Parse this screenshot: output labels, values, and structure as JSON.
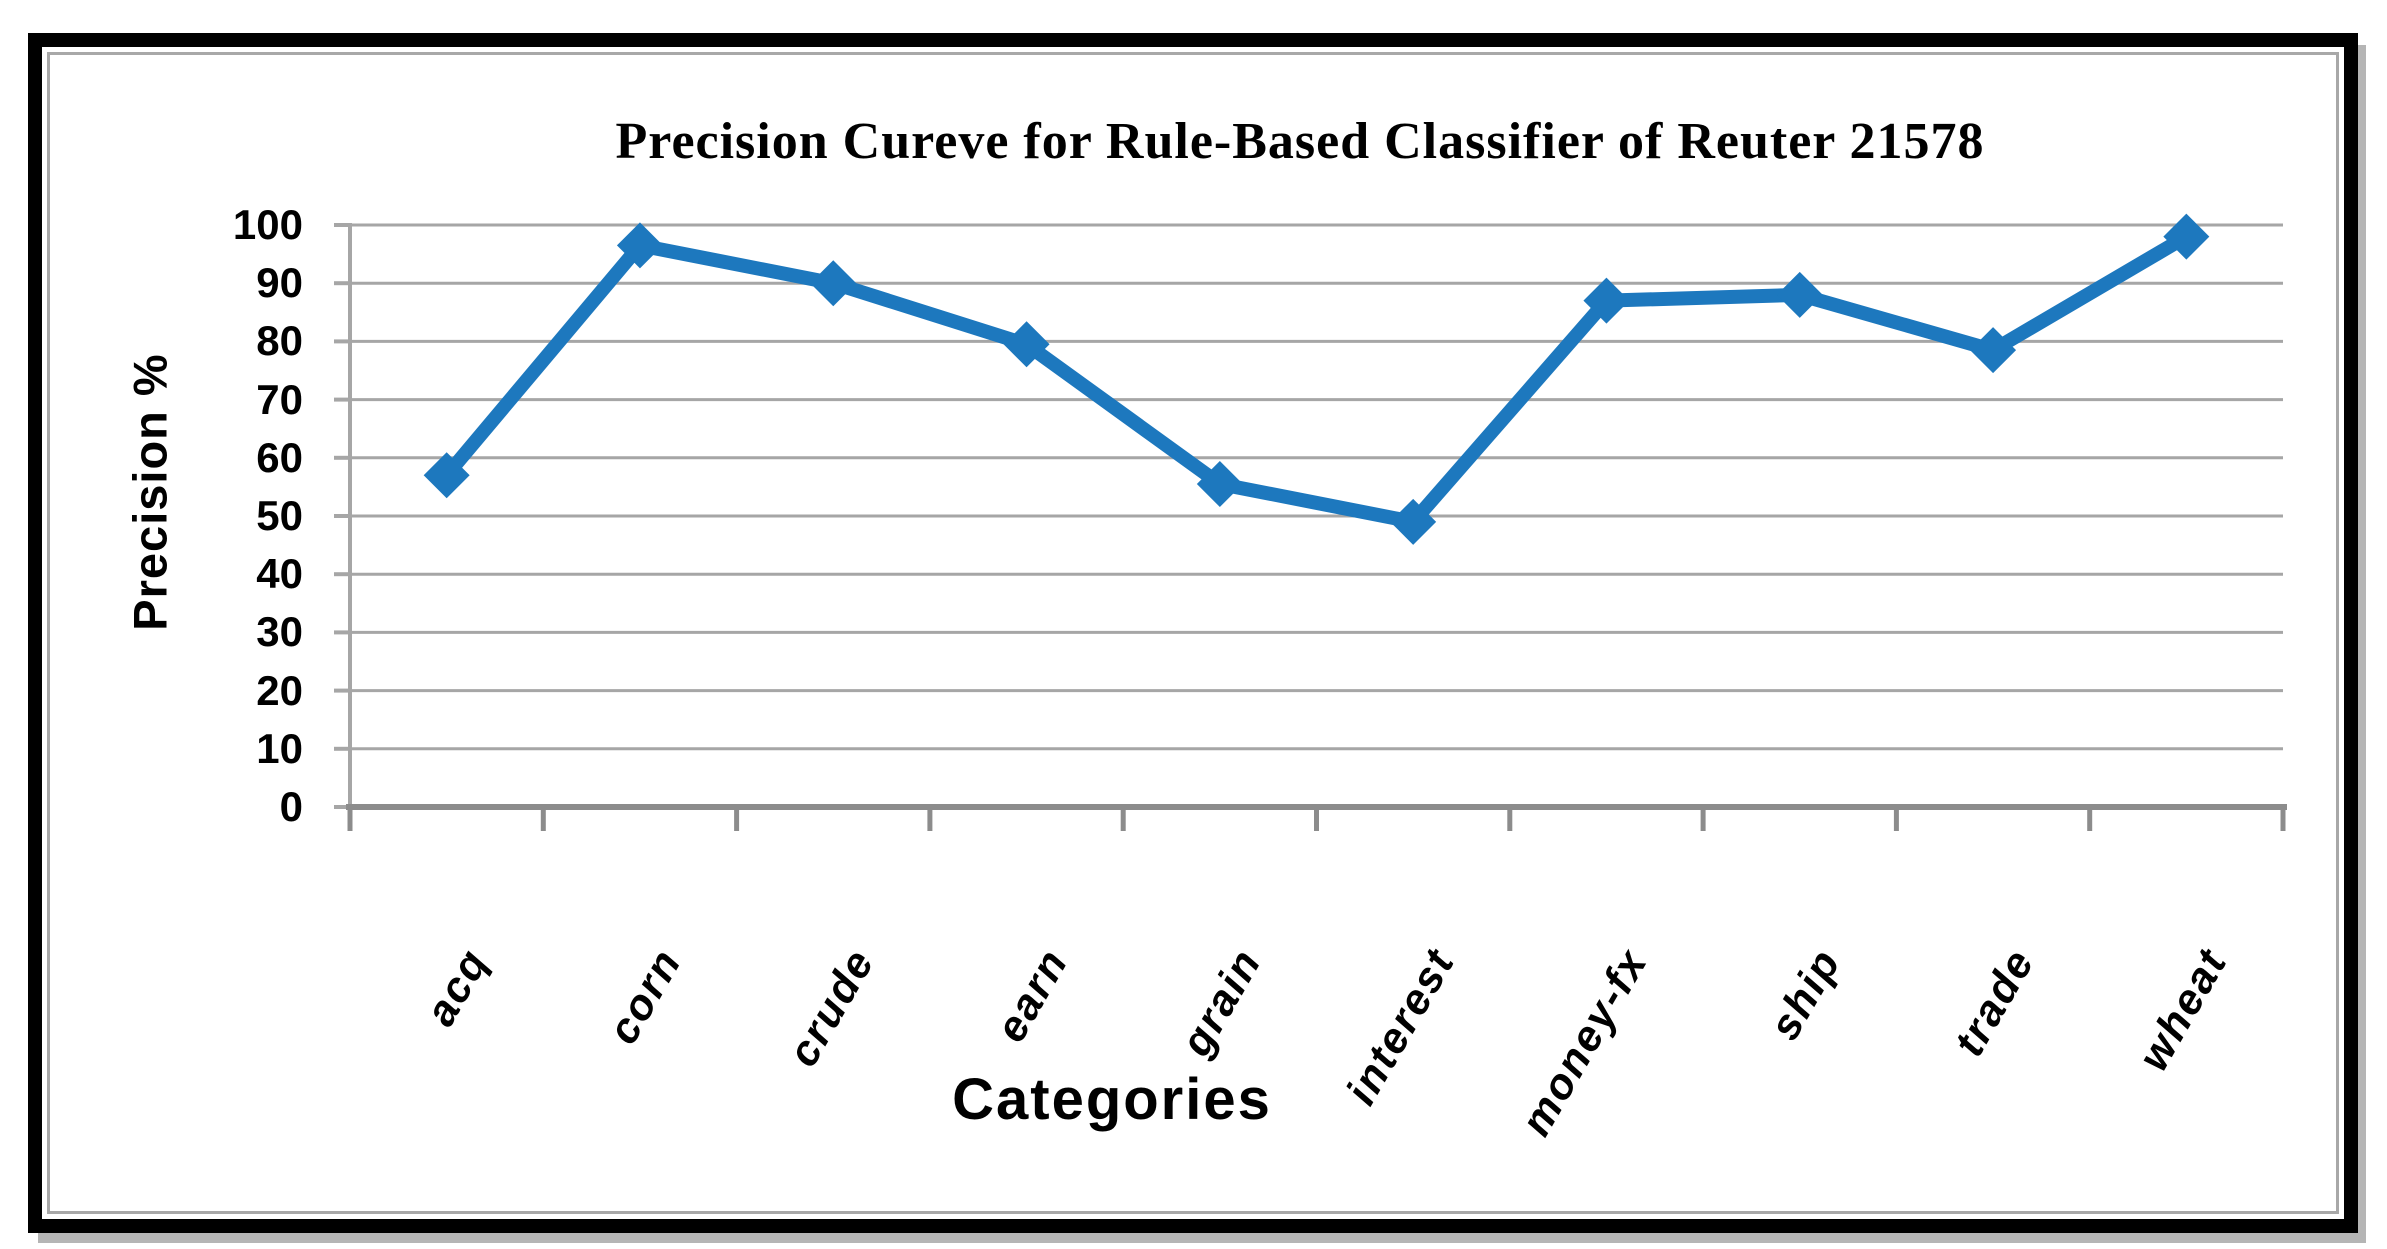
{
  "chart_data": {
    "type": "line",
    "title": "Precision Cureve for Rule-Based Classifier of Reuter 21578",
    "xlabel": "Categories",
    "ylabel": "Precision %",
    "categories": [
      "acq",
      "corn",
      "crude",
      "earn",
      "grain",
      "interest",
      "money-fx",
      "ship",
      "trade",
      "wheat"
    ],
    "series": [
      {
        "name": "Precision %",
        "values": [
          57,
          96.5,
          90,
          79.5,
          55.5,
          49,
          87,
          88,
          78.5,
          98
        ]
      }
    ],
    "ylim": [
      0,
      100
    ],
    "yticks": [
      100,
      90,
      80,
      70,
      60,
      50,
      40,
      30,
      20,
      10,
      0
    ],
    "grid": "horizontal-major",
    "legend": "none",
    "marker": "diamond",
    "line_color": "#1d78be",
    "grid_color": "#a6a6a6",
    "axis_color": "#8c8c8c",
    "text_color": "#000000",
    "frame_color": "#000000"
  }
}
